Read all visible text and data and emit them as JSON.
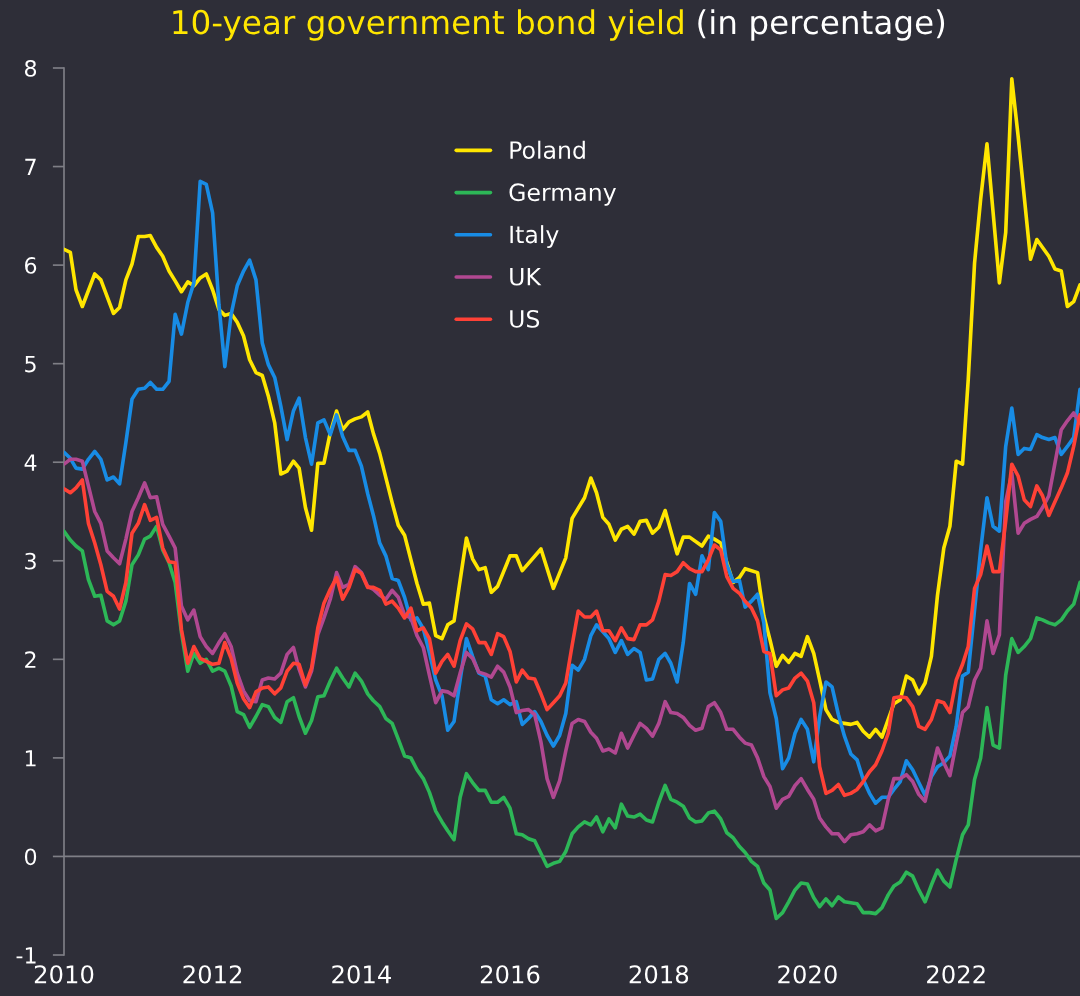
{
  "chart_data": {
    "type": "line",
    "title": "10-year government bond yield",
    "subtitle": "(in percentage)",
    "x": [
      "2010-01",
      "2010-02",
      "2010-03",
      "2010-04",
      "2010-05",
      "2010-06",
      "2010-07",
      "2010-08",
      "2010-09",
      "2010-10",
      "2010-11",
      "2010-12",
      "2011-01",
      "2011-02",
      "2011-03",
      "2011-04",
      "2011-05",
      "2011-06",
      "2011-07",
      "2011-08",
      "2011-09",
      "2011-10",
      "2011-11",
      "2011-12",
      "2012-01",
      "2012-02",
      "2012-03",
      "2012-04",
      "2012-05",
      "2012-06",
      "2012-07",
      "2012-08",
      "2012-09",
      "2012-10",
      "2012-11",
      "2012-12",
      "2013-01",
      "2013-02",
      "2013-03",
      "2013-04",
      "2013-05",
      "2013-06",
      "2013-07",
      "2013-08",
      "2013-09",
      "2013-10",
      "2013-11",
      "2013-12",
      "2014-01",
      "2014-02",
      "2014-03",
      "2014-04",
      "2014-05",
      "2014-06",
      "2014-07",
      "2014-08",
      "2014-09",
      "2014-10",
      "2014-11",
      "2014-12",
      "2015-01",
      "2015-02",
      "2015-03",
      "2015-04",
      "2015-05",
      "2015-06",
      "2015-07",
      "2015-08",
      "2015-09",
      "2015-10",
      "2015-11",
      "2015-12",
      "2016-01",
      "2016-02",
      "2016-03",
      "2016-04",
      "2016-05",
      "2016-06",
      "2016-07",
      "2016-08",
      "2016-09",
      "2016-10",
      "2016-11",
      "2016-12",
      "2017-01",
      "2017-02",
      "2017-03",
      "2017-04",
      "2017-05",
      "2017-06",
      "2017-07",
      "2017-08",
      "2017-09",
      "2017-10",
      "2017-11",
      "2017-12",
      "2018-01",
      "2018-02",
      "2018-03",
      "2018-04",
      "2018-05",
      "2018-06",
      "2018-07",
      "2018-08",
      "2018-09",
      "2018-10",
      "2018-11",
      "2018-12",
      "2019-01",
      "2019-02",
      "2019-03",
      "2019-04",
      "2019-05",
      "2019-06",
      "2019-07",
      "2019-08",
      "2019-09",
      "2019-10",
      "2019-11",
      "2019-12",
      "2020-01",
      "2020-02",
      "2020-03",
      "2020-04",
      "2020-05",
      "2020-06",
      "2020-07",
      "2020-08",
      "2020-09",
      "2020-10",
      "2020-11",
      "2020-12",
      "2021-01",
      "2021-02",
      "2021-03",
      "2021-04",
      "2021-05",
      "2021-06",
      "2021-07",
      "2021-08",
      "2021-09",
      "2021-10",
      "2021-11",
      "2021-12",
      "2022-01",
      "2022-02",
      "2022-03",
      "2022-04",
      "2022-05",
      "2022-06",
      "2022-07",
      "2022-08",
      "2022-09",
      "2022-10",
      "2022-11",
      "2022-12",
      "2023-01",
      "2023-02",
      "2023-03",
      "2023-04",
      "2023-05",
      "2023-06",
      "2023-07",
      "2023-08",
      "2023-09"
    ],
    "series": [
      {
        "name": "Poland",
        "color": "#ffe600",
        "x": [
          "2010-01",
          "2010-02",
          "2010-03",
          "2010-04",
          "2010-06",
          "2010-07",
          "2010-09",
          "2010-10",
          "2010-11",
          "2010-12",
          "2011-01",
          "2011-02",
          "2011-03",
          "2011-04",
          "2011-05",
          "2011-06",
          "2011-07",
          "2011-08",
          "2011-09",
          "2011-10",
          "2011-11",
          "2011-12",
          "2012-01",
          "2012-02",
          "2012-03",
          "2012-04",
          "2012-05",
          "2012-06",
          "2012-07",
          "2012-08",
          "2012-09",
          "2012-10",
          "2012-11",
          "2012-12",
          "2013-01",
          "2013-02",
          "2013-03",
          "2013-04",
          "2013-05",
          "2013-06",
          "2013-07",
          "2013-08",
          "2013-09",
          "2013-10",
          "2013-11",
          "2013-12",
          "2014-01",
          "2014-02",
          "2014-03",
          "2014-04",
          "2014-06",
          "2014-07",
          "2014-08",
          "2014-10",
          "2014-11",
          "2014-12",
          "2015-01",
          "2015-02",
          "2015-03",
          "2015-04",
          "2015-06",
          "2015-07",
          "2015-08",
          "2015-09",
          "2015-10",
          "2015-11",
          "2016-01",
          "2016-02",
          "2016-03",
          "2016-06",
          "2016-08",
          "2016-10",
          "2016-11",
          "2017-01",
          "2017-02",
          "2017-03",
          "2017-04",
          "2017-05",
          "2017-06",
          "2017-07",
          "2017-08",
          "2017-09",
          "2017-10",
          "2017-11",
          "2017-12",
          "2018-01",
          "2018-02",
          "2018-04",
          "2018-05",
          "2018-06",
          "2018-08",
          "2018-09",
          "2018-10",
          "2018-11",
          "2019-01",
          "2019-02",
          "2019-03",
          "2019-05",
          "2019-06",
          "2019-07",
          "2019-08",
          "2019-09",
          "2019-10",
          "2019-11",
          "2019-12",
          "2020-01",
          "2020-02",
          "2020-03",
          "2020-04",
          "2020-05",
          "2020-06",
          "2020-07",
          "2020-08",
          "2020-09",
          "2020-10",
          "2020-11",
          "2020-12",
          "2021-01",
          "2021-02",
          "2021-03",
          "2021-04",
          "2021-05",
          "2021-06",
          "2021-07",
          "2021-08",
          "2021-09",
          "2021-10",
          "2021-11",
          "2021-12",
          "2022-01",
          "2022-02",
          "2022-03",
          "2022-04",
          "2022-05",
          "2022-06",
          "2022-08",
          "2022-09",
          "2022-10",
          "2022-11",
          "2023-01",
          "2023-02",
          "2023-04",
          "2023-05",
          "2023-06",
          "2023-07",
          "2023-08",
          "2023-09"
        ],
        "values": [
          6.16,
          6.13,
          5.75,
          5.58,
          5.91,
          5.85,
          5.51,
          5.57,
          5.85,
          6.01,
          6.29,
          6.29,
          6.3,
          6.18,
          6.09,
          5.94,
          5.84,
          5.73,
          5.83,
          5.79,
          5.87,
          5.91,
          5.75,
          5.55,
          5.49,
          5.51,
          5.42,
          5.28,
          5.04,
          4.91,
          4.88,
          4.67,
          4.4,
          3.88,
          3.91,
          4.01,
          3.94,
          3.54,
          3.31,
          3.99,
          3.99,
          4.3,
          4.52,
          4.33,
          4.41,
          4.44,
          4.46,
          4.51,
          4.29,
          4.09,
          3.59,
          3.36,
          3.26,
          2.77,
          2.56,
          2.57,
          2.24,
          2.21,
          2.35,
          2.39,
          3.23,
          3.02,
          2.91,
          2.93,
          2.68,
          2.74,
          3.05,
          3.05,
          2.9,
          3.12,
          2.72,
          3.03,
          3.43,
          3.64,
          3.84,
          3.69,
          3.44,
          3.37,
          3.21,
          3.32,
          3.35,
          3.27,
          3.4,
          3.41,
          3.28,
          3.34,
          3.51,
          3.07,
          3.24,
          3.24,
          3.15,
          3.25,
          3.22,
          3.18,
          2.78,
          2.83,
          2.92,
          2.88,
          2.44,
          2.2,
          1.93,
          2.04,
          1.97,
          2.06,
          2.03,
          2.23,
          2.06,
          1.79,
          1.49,
          1.39,
          1.36,
          1.35,
          1.34,
          1.36,
          1.27,
          1.21,
          1.29,
          1.21,
          1.39,
          1.55,
          1.59,
          1.83,
          1.79,
          1.65,
          1.76,
          2.03,
          2.65,
          3.13,
          3.35,
          4.01,
          3.98,
          4.84,
          6.02,
          6.67,
          7.23,
          5.82,
          6.33,
          7.89,
          7.31,
          6.06,
          6.26,
          6.09,
          5.96,
          5.94,
          5.58,
          5.63,
          5.8
        ]
      },
      {
        "name": "Germany",
        "color": "#2db757",
        "values": [
          3.3,
          3.21,
          3.15,
          3.1,
          2.81,
          2.64,
          2.65,
          2.39,
          2.35,
          2.39,
          2.59,
          2.96,
          3.06,
          3.22,
          3.25,
          3.35,
          3.11,
          2.98,
          2.78,
          2.27,
          1.88,
          2.06,
          1.96,
          2.0,
          1.88,
          1.91,
          1.88,
          1.73,
          1.47,
          1.44,
          1.31,
          1.42,
          1.54,
          1.52,
          1.41,
          1.36,
          1.57,
          1.61,
          1.42,
          1.25,
          1.38,
          1.62,
          1.63,
          1.78,
          1.91,
          1.81,
          1.72,
          1.86,
          1.78,
          1.65,
          1.58,
          1.52,
          1.4,
          1.35,
          1.19,
          1.02,
          1.0,
          0.88,
          0.79,
          0.65,
          0.46,
          0.35,
          0.26,
          0.17,
          0.6,
          0.84,
          0.75,
          0.67,
          0.67,
          0.55,
          0.55,
          0.6,
          0.49,
          0.23,
          0.22,
          0.18,
          0.16,
          0.03,
          -0.1,
          -0.07,
          -0.05,
          0.05,
          0.23,
          0.3,
          0.35,
          0.32,
          0.4,
          0.25,
          0.38,
          0.29,
          0.53,
          0.41,
          0.4,
          0.43,
          0.37,
          0.35,
          0.55,
          0.72,
          0.58,
          0.55,
          0.51,
          0.39,
          0.35,
          0.36,
          0.44,
          0.46,
          0.38,
          0.24,
          0.19,
          0.1,
          0.04,
          -0.05,
          -0.1,
          -0.27,
          -0.34,
          -0.63,
          -0.57,
          -0.46,
          -0.34,
          -0.27,
          -0.28,
          -0.42,
          -0.51,
          -0.43,
          -0.5,
          -0.41,
          -0.46,
          -0.47,
          -0.48,
          -0.57,
          -0.57,
          -0.58,
          -0.52,
          -0.39,
          -0.3,
          -0.26,
          -0.16,
          -0.2,
          -0.34,
          -0.46,
          -0.29,
          -0.14,
          -0.25,
          -0.31,
          -0.03,
          0.22,
          0.32,
          0.78,
          1.0,
          1.51,
          1.13,
          1.1,
          1.84,
          2.21,
          2.07,
          2.13,
          2.21,
          2.42,
          2.4,
          2.37,
          2.35,
          2.4,
          2.49,
          2.56,
          2.78
        ]
      },
      {
        "name": "Italy",
        "color": "#188ce5",
        "values": [
          4.1,
          4.04,
          3.94,
          3.93,
          4.03,
          4.11,
          4.03,
          3.82,
          3.85,
          3.78,
          4.2,
          4.64,
          4.74,
          4.75,
          4.81,
          4.74,
          4.74,
          4.82,
          5.5,
          5.3,
          5.62,
          5.82,
          6.85,
          6.82,
          6.53,
          5.6,
          4.97,
          5.5,
          5.79,
          5.94,
          6.05,
          5.85,
          5.21,
          4.99,
          4.86,
          4.57,
          4.23,
          4.52,
          4.65,
          4.25,
          3.98,
          4.4,
          4.43,
          4.28,
          4.48,
          4.26,
          4.12,
          4.12,
          3.96,
          3.68,
          3.46,
          3.18,
          3.05,
          2.82,
          2.8,
          2.63,
          2.4,
          2.42,
          2.31,
          2.07,
          1.79,
          1.63,
          1.28,
          1.37,
          1.79,
          2.21,
          2.03,
          1.86,
          1.83,
          1.59,
          1.55,
          1.59,
          1.54,
          1.57,
          1.34,
          1.4,
          1.47,
          1.37,
          1.23,
          1.12,
          1.23,
          1.45,
          1.94,
          1.89,
          2.0,
          2.24,
          2.35,
          2.28,
          2.21,
          2.07,
          2.19,
          2.05,
          2.11,
          2.07,
          1.79,
          1.8,
          2.0,
          2.06,
          1.96,
          1.77,
          2.17,
          2.77,
          2.66,
          3.05,
          2.91,
          3.49,
          3.4,
          2.96,
          2.79,
          2.8,
          2.53,
          2.59,
          2.66,
          2.37,
          1.66,
          1.4,
          0.89,
          1.0,
          1.25,
          1.39,
          1.29,
          0.96,
          1.42,
          1.77,
          1.72,
          1.44,
          1.22,
          1.04,
          0.98,
          0.78,
          0.64,
          0.54,
          0.6,
          0.6,
          0.68,
          0.76,
          0.97,
          0.88,
          0.75,
          0.62,
          0.81,
          0.91,
          0.95,
          1.02,
          1.32,
          1.83,
          1.87,
          2.5,
          3.11,
          3.64,
          3.35,
          3.3,
          4.16,
          4.55,
          4.08,
          4.14,
          4.13,
          4.28,
          4.25,
          4.23,
          4.25,
          4.08,
          4.16,
          4.25,
          4.74
        ]
      },
      {
        "name": "UK",
        "color": "#b14891",
        "values": [
          3.98,
          4.03,
          4.03,
          4.01,
          3.76,
          3.5,
          3.38,
          3.1,
          3.03,
          2.97,
          3.22,
          3.5,
          3.64,
          3.79,
          3.64,
          3.65,
          3.37,
          3.25,
          3.13,
          2.54,
          2.4,
          2.5,
          2.23,
          2.13,
          2.06,
          2.17,
          2.26,
          2.13,
          1.86,
          1.68,
          1.58,
          1.57,
          1.79,
          1.81,
          1.8,
          1.86,
          2.05,
          2.12,
          1.9,
          1.72,
          1.88,
          2.25,
          2.42,
          2.61,
          2.88,
          2.73,
          2.76,
          2.94,
          2.88,
          2.74,
          2.71,
          2.65,
          2.61,
          2.7,
          2.63,
          2.45,
          2.42,
          2.24,
          2.12,
          1.84,
          1.56,
          1.68,
          1.67,
          1.63,
          1.86,
          2.07,
          2.01,
          1.87,
          1.85,
          1.82,
          1.93,
          1.87,
          1.72,
          1.46,
          1.48,
          1.49,
          1.44,
          1.16,
          0.79,
          0.6,
          0.77,
          1.07,
          1.35,
          1.39,
          1.37,
          1.26,
          1.2,
          1.07,
          1.09,
          1.05,
          1.25,
          1.1,
          1.23,
          1.35,
          1.3,
          1.22,
          1.35,
          1.57,
          1.46,
          1.45,
          1.41,
          1.33,
          1.28,
          1.3,
          1.52,
          1.56,
          1.46,
          1.29,
          1.29,
          1.21,
          1.15,
          1.13,
          1.0,
          0.81,
          0.71,
          0.49,
          0.58,
          0.61,
          0.72,
          0.79,
          0.68,
          0.58,
          0.39,
          0.3,
          0.23,
          0.23,
          0.15,
          0.22,
          0.23,
          0.25,
          0.32,
          0.26,
          0.29,
          0.58,
          0.79,
          0.79,
          0.83,
          0.76,
          0.63,
          0.56,
          0.84,
          1.1,
          0.95,
          0.82,
          1.15,
          1.46,
          1.52,
          1.79,
          1.91,
          2.39,
          2.06,
          2.25,
          3.6,
          3.89,
          3.28,
          3.38,
          3.42,
          3.45,
          3.54,
          3.66,
          3.99,
          4.33,
          4.42,
          4.5,
          4.4
        ]
      },
      {
        "name": "US",
        "color": "#ff4136",
        "values": [
          3.73,
          3.69,
          3.74,
          3.82,
          3.38,
          3.18,
          2.96,
          2.69,
          2.64,
          2.51,
          2.78,
          3.28,
          3.38,
          3.57,
          3.41,
          3.44,
          3.13,
          2.99,
          2.98,
          2.3,
          1.96,
          2.13,
          2.01,
          1.98,
          1.95,
          1.96,
          2.17,
          2.01,
          1.76,
          1.6,
          1.51,
          1.67,
          1.71,
          1.72,
          1.65,
          1.71,
          1.88,
          1.96,
          1.95,
          1.74,
          1.91,
          2.32,
          2.57,
          2.71,
          2.83,
          2.61,
          2.73,
          2.91,
          2.87,
          2.73,
          2.73,
          2.7,
          2.56,
          2.59,
          2.52,
          2.42,
          2.52,
          2.29,
          2.32,
          2.21,
          1.86,
          1.98,
          2.05,
          1.93,
          2.19,
          2.36,
          2.31,
          2.17,
          2.17,
          2.05,
          2.26,
          2.23,
          2.08,
          1.77,
          1.89,
          1.81,
          1.8,
          1.65,
          1.49,
          1.56,
          1.63,
          1.76,
          2.14,
          2.49,
          2.43,
          2.43,
          2.49,
          2.29,
          2.29,
          2.19,
          2.32,
          2.21,
          2.2,
          2.35,
          2.35,
          2.4,
          2.59,
          2.86,
          2.85,
          2.89,
          2.98,
          2.92,
          2.89,
          2.89,
          3.01,
          3.16,
          3.11,
          2.84,
          2.72,
          2.67,
          2.59,
          2.52,
          2.39,
          2.08,
          2.06,
          1.63,
          1.69,
          1.71,
          1.81,
          1.86,
          1.78,
          1.56,
          0.91,
          0.64,
          0.67,
          0.73,
          0.62,
          0.64,
          0.68,
          0.76,
          0.86,
          0.93,
          1.07,
          1.25,
          1.61,
          1.62,
          1.61,
          1.52,
          1.32,
          1.29,
          1.39,
          1.58,
          1.56,
          1.46,
          1.79,
          1.95,
          2.13,
          2.72,
          2.86,
          3.15,
          2.89,
          2.89,
          3.4,
          3.98,
          3.86,
          3.62,
          3.55,
          3.76,
          3.66,
          3.46,
          3.6,
          3.74,
          3.89,
          4.16,
          4.48
        ]
      }
    ],
    "xlim": [
      "2010-01",
      "2023-09"
    ],
    "xticks": [
      {
        "value": "2010-01",
        "label": "2010"
      },
      {
        "value": "2012-01",
        "label": "2012"
      },
      {
        "value": "2014-01",
        "label": "2014"
      },
      {
        "value": "2016-01",
        "label": "2016"
      },
      {
        "value": "2018-01",
        "label": "2018"
      },
      {
        "value": "2020-01",
        "label": "2020"
      },
      {
        "value": "2022-01",
        "label": "2022"
      }
    ],
    "ylim": [
      -1,
      8
    ],
    "yticks": [
      -1,
      0,
      1,
      2,
      3,
      4,
      5,
      6,
      7,
      8
    ],
    "ref_lines": [
      {
        "axis": "y",
        "value": 0,
        "color": "#7f7f86"
      }
    ],
    "legend": "top",
    "line_style": "solid"
  }
}
